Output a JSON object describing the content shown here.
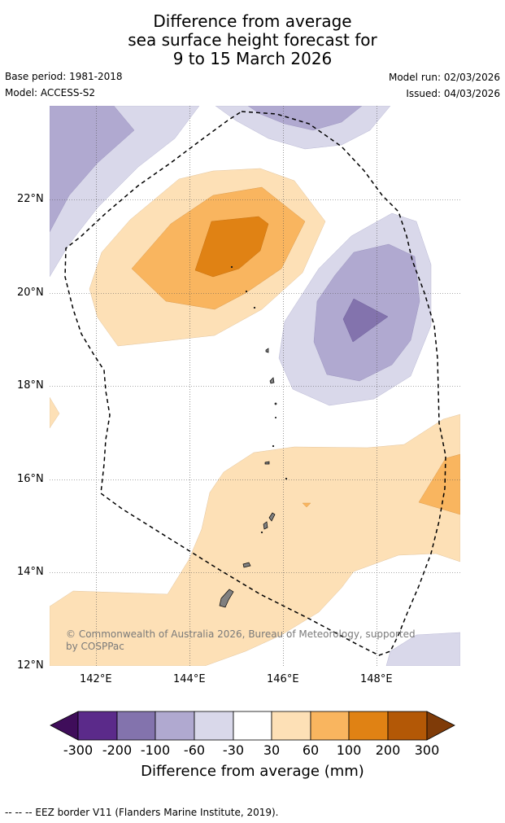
{
  "title": {
    "line1": "Difference from average",
    "line2": "sea surface height forecast for",
    "line3": "9 to 15 March 2026"
  },
  "meta": {
    "base_period": "Base period: 1981-2018",
    "model": "Model: ACCESS-S2",
    "model_run": "Model run: 02/03/2026",
    "issued": "Issued: 04/03/2026"
  },
  "map": {
    "lat_labels": [
      "22°N",
      "20°N",
      "18°N",
      "16°N",
      "14°N",
      "12°N"
    ],
    "lon_labels": [
      "142°E",
      "144°E",
      "146°E",
      "148°E"
    ],
    "extent": {
      "lon_min": 141,
      "lon_max": 149.8,
      "lat_min": 12,
      "lat_max": 24
    },
    "credit": "© Commonwealth of Australia 2026, Bureau of Meteorology, supported by COSPPac"
  },
  "colorbar": {
    "tick_labels": [
      "-300",
      "-200",
      "-100",
      "-60",
      "-30",
      "30",
      "60",
      "100",
      "200",
      "300"
    ],
    "colors": [
      "#3f0d5a",
      "#5b2a8a",
      "#8373ad",
      "#b0a9d0",
      "#d9d8ea",
      "#ffffff",
      "#fde0b6",
      "#f9b55f",
      "#e08214",
      "#b35806",
      "#7f3b08"
    ],
    "title": "Difference from average (mm)"
  },
  "legend": {
    "eez_note": "--  --  -- EEZ border V11 (Flanders Marine Institute, 2019)."
  }
}
